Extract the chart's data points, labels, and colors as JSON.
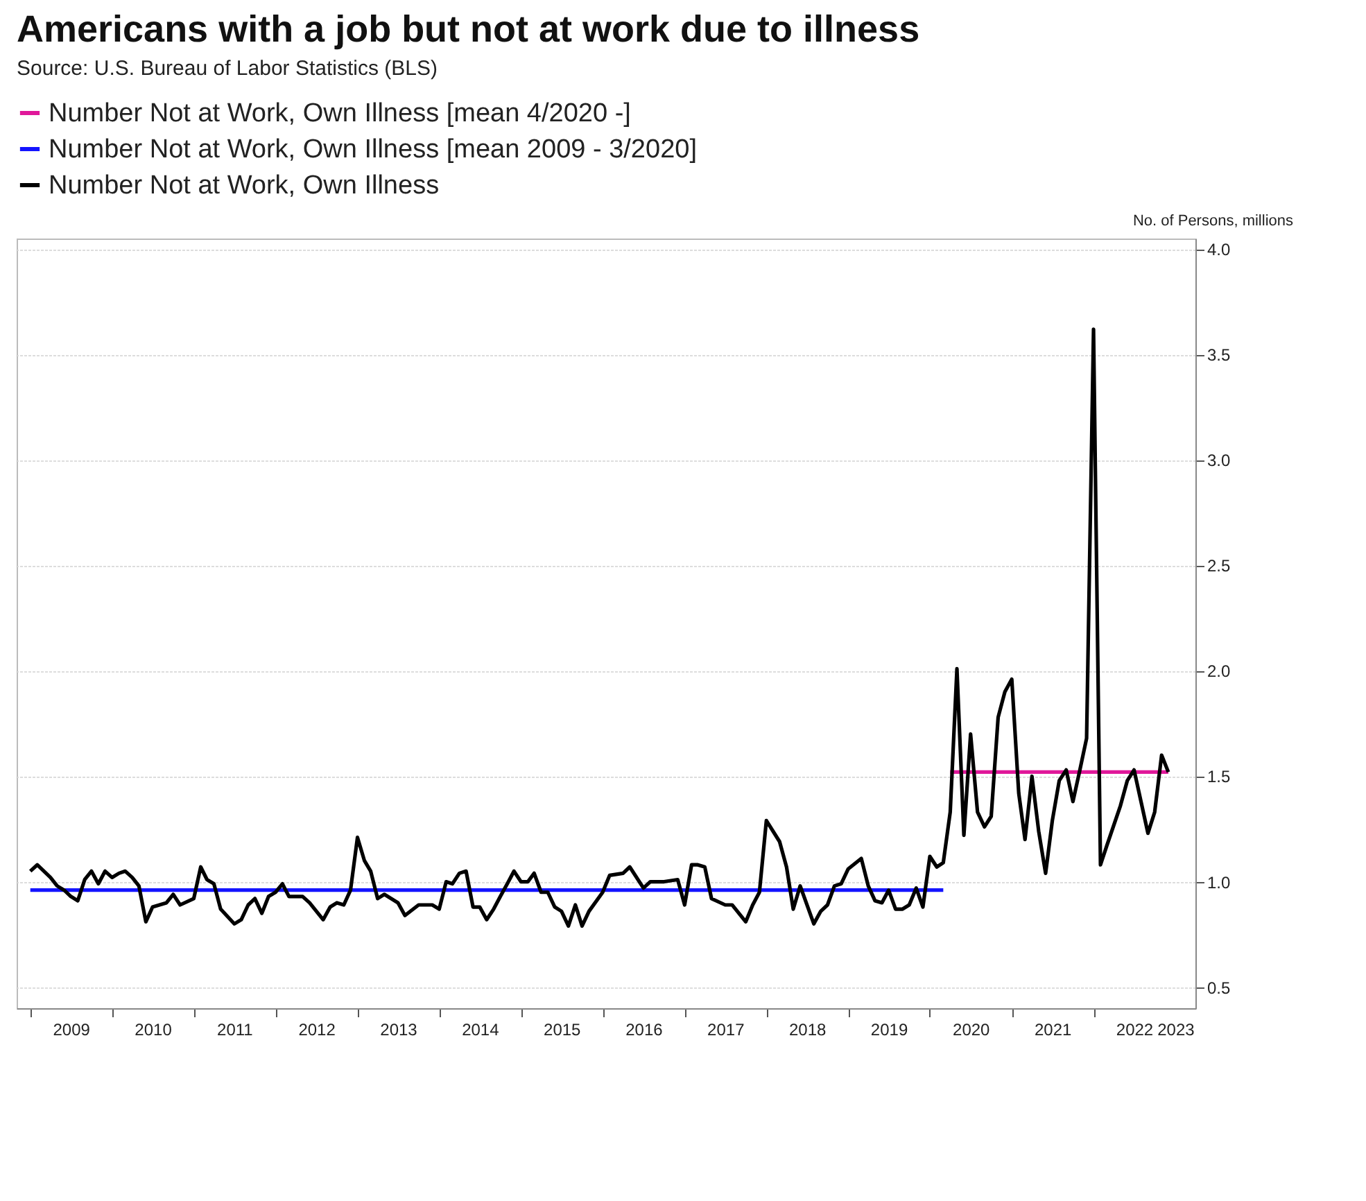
{
  "chart_data": {
    "type": "line",
    "title": "Americans with a job but not at work due to illness",
    "subtitle": "Source: U.S. Bureau of Labor Statistics (BLS)",
    "ylabel": "No. of Persons, millions",
    "xlim": [
      "2008-11",
      "2023-04"
    ],
    "xticks": [
      {
        "value": "2009-01",
        "label": null
      },
      {
        "value": "2009-07",
        "label": "2009"
      },
      {
        "value": "2010-01",
        "label": null
      },
      {
        "value": "2010-07",
        "label": "2010"
      },
      {
        "value": "2011-01",
        "label": null
      },
      {
        "value": "2011-07",
        "label": "2011"
      },
      {
        "value": "2012-01",
        "label": null
      },
      {
        "value": "2012-07",
        "label": "2012"
      },
      {
        "value": "2013-01",
        "label": null
      },
      {
        "value": "2013-07",
        "label": "2013"
      },
      {
        "value": "2014-01",
        "label": null
      },
      {
        "value": "2014-07",
        "label": "2014"
      },
      {
        "value": "2015-01",
        "label": null
      },
      {
        "value": "2015-07",
        "label": "2015"
      },
      {
        "value": "2016-01",
        "label": null
      },
      {
        "value": "2016-07",
        "label": "2016"
      },
      {
        "value": "2017-01",
        "label": null
      },
      {
        "value": "2017-07",
        "label": "2017"
      },
      {
        "value": "2018-01",
        "label": null
      },
      {
        "value": "2018-07",
        "label": "2018"
      },
      {
        "value": "2019-01",
        "label": null
      },
      {
        "value": "2019-07",
        "label": "2019"
      },
      {
        "value": "2020-01",
        "label": null
      },
      {
        "value": "2020-07",
        "label": "2020"
      },
      {
        "value": "2021-01",
        "label": null
      },
      {
        "value": "2021-07",
        "label": "2021"
      },
      {
        "value": "2022-01",
        "label": null
      },
      {
        "value": "2022-07",
        "label": "2022"
      },
      {
        "value": "2023-01",
        "label": "2023"
      }
    ],
    "ylim": [
      0.4,
      4.05
    ],
    "yticks": [
      0.5,
      {
        "value": 1,
        "label": "1.0"
      },
      1.5,
      {
        "value": 2,
        "label": "2.0"
      },
      2.5,
      {
        "value": 3,
        "label": "3.0"
      },
      3.5,
      {
        "value": 4,
        "label": "4.0"
      }
    ],
    "grid": "y",
    "legend": "top",
    "series": [
      {
        "name": "Number Not at Work, Own Illness [mean 4/2020 -]",
        "color": "#e0189a",
        "x": [
          "2020-04",
          "2022-12"
        ],
        "values": [
          1.52,
          1.52
        ]
      },
      {
        "name": "Number Not at Work, Own Illness [mean 2009 - 3/2020]",
        "color": "#1414ff",
        "x": [
          "2009-01",
          "2020-03"
        ],
        "values": [
          0.96,
          0.96
        ]
      },
      {
        "name": "Number Not at Work, Own Illness",
        "color": "#000000",
        "x": [
          "2009-01",
          "2009-02",
          "2009-04",
          "2009-05",
          "2009-06",
          "2009-07",
          "2009-08",
          "2009-09",
          "2009-10",
          "2009-11",
          "2009-12",
          "2010-01",
          "2010-02",
          "2010-03",
          "2010-04",
          "2010-05",
          "2010-06",
          "2010-07",
          "2010-08",
          "2010-09",
          "2010-10",
          "2010-11",
          "2011-01",
          "2011-02",
          "2011-03",
          "2011-04",
          "2011-05",
          "2011-07",
          "2011-08",
          "2011-09",
          "2011-10",
          "2011-11",
          "2011-12",
          "2012-01",
          "2012-02",
          "2012-03",
          "2012-05",
          "2012-06",
          "2012-08",
          "2012-09",
          "2012-10",
          "2012-11",
          "2012-12",
          "2013-01",
          "2013-02",
          "2013-03",
          "2013-04",
          "2013-05",
          "2013-07",
          "2013-08",
          "2013-10",
          "2013-11",
          "2013-12",
          "2014-01",
          "2014-02",
          "2014-03",
          "2014-04",
          "2014-05",
          "2014-06",
          "2014-07",
          "2014-08",
          "2014-09",
          "2014-10",
          "2014-11",
          "2014-12",
          "2015-01",
          "2015-02",
          "2015-03",
          "2015-04",
          "2015-05",
          "2015-06",
          "2015-07",
          "2015-08",
          "2015-09",
          "2015-10",
          "2015-11",
          "2016-01",
          "2016-02",
          "2016-04",
          "2016-05",
          "2016-07",
          "2016-08",
          "2016-09",
          "2016-10",
          "2016-12",
          "2017-01",
          "2017-02",
          "2017-03",
          "2017-04",
          "2017-05",
          "2017-07",
          "2017-08",
          "2017-10",
          "2017-11",
          "2017-12",
          "2018-01",
          "2018-03",
          "2018-04",
          "2018-05",
          "2018-06",
          "2018-08",
          "2018-09",
          "2018-10",
          "2018-11",
          "2018-12",
          "2019-01",
          "2019-03",
          "2019-04",
          "2019-05",
          "2019-06",
          "2019-07",
          "2019-08",
          "2019-09",
          "2019-10",
          "2019-11",
          "2019-12",
          "2020-01",
          "2020-02",
          "2020-03",
          "2020-04",
          "2020-05",
          "2020-06",
          "2020-07",
          "2020-08",
          "2020-09",
          "2020-10",
          "2020-11",
          "2020-12",
          "2021-01",
          "2021-02",
          "2021-03",
          "2021-04",
          "2021-05",
          "2021-06",
          "2021-07",
          "2021-08",
          "2021-09",
          "2021-10",
          "2021-11",
          "2021-12",
          "2022-01",
          "2022-02",
          "2022-03",
          "2022-05",
          "2022-06",
          "2022-07",
          "2022-09",
          "2022-10",
          "2022-11",
          "2022-12"
        ],
        "values": [
          1.05,
          1.08,
          1.02,
          0.98,
          0.96,
          0.93,
          0.91,
          1.01,
          1.05,
          0.99,
          1.05,
          1.02,
          1.04,
          1.05,
          1.02,
          0.98,
          0.81,
          0.88,
          0.89,
          0.9,
          0.94,
          0.89,
          0.92,
          1.07,
          1.01,
          0.99,
          0.87,
          0.8,
          0.82,
          0.89,
          0.92,
          0.85,
          0.93,
          0.95,
          0.99,
          0.93,
          0.93,
          0.9,
          0.82,
          0.88,
          0.9,
          0.89,
          0.96,
          1.21,
          1.1,
          1.05,
          0.92,
          0.94,
          0.9,
          0.84,
          0.89,
          0.89,
          0.89,
          0.87,
          1.0,
          0.99,
          1.04,
          1.05,
          0.88,
          0.88,
          0.82,
          0.87,
          0.93,
          0.99,
          1.05,
          1.0,
          1.0,
          1.04,
          0.95,
          0.95,
          0.88,
          0.86,
          0.79,
          0.89,
          0.79,
          0.86,
          0.95,
          1.03,
          1.04,
          1.07,
          0.97,
          1.0,
          1.0,
          1.0,
          1.01,
          0.89,
          1.08,
          1.08,
          1.07,
          0.92,
          0.89,
          0.89,
          0.81,
          0.89,
          0.95,
          1.29,
          1.19,
          1.07,
          0.87,
          0.98,
          0.8,
          0.86,
          0.89,
          0.98,
          0.99,
          1.06,
          1.11,
          0.98,
          0.91,
          0.9,
          0.96,
          0.87,
          0.87,
          0.89,
          0.97,
          0.88,
          1.12,
          1.07,
          1.09,
          1.33,
          2.01,
          1.22,
          1.7,
          1.33,
          1.26,
          1.31,
          1.78,
          1.9,
          1.96,
          1.42,
          1.2,
          1.5,
          1.24,
          1.04,
          1.29,
          1.48,
          1.53,
          1.38,
          1.53,
          1.68,
          3.62,
          1.08,
          1.17,
          1.36,
          1.48,
          1.53,
          1.23,
          1.33,
          1.6,
          1.52
        ]
      }
    ]
  }
}
